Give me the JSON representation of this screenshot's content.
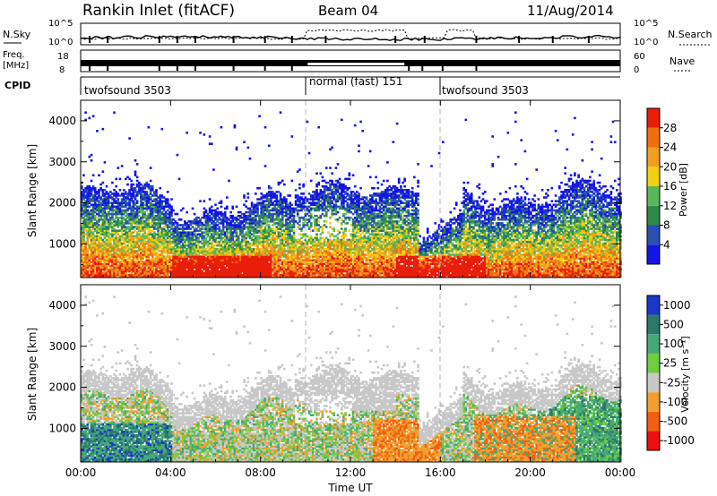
{
  "header": {
    "station": "Rankin Inlet (fitACF)",
    "beam": "Beam 04",
    "date": "11/Aug/2014"
  },
  "noise_panel": {
    "left_label": "N.Sky",
    "right_label": "N.Search",
    "left_ticks": [
      "10^5",
      "10^0"
    ],
    "right_ticks": [
      "10^5",
      "10^0"
    ]
  },
  "freq_panel": {
    "left_label_line1": "Freq.",
    "left_label_line2": "[MHz]",
    "right_label": "Nave",
    "left_ticks": [
      "18",
      "8"
    ],
    "right_ticks": [
      "60",
      "0"
    ]
  },
  "cpid_panel": {
    "label": "CPID",
    "segments": [
      {
        "start_hour": 0,
        "end_hour": 10,
        "text": "twofsound 3503"
      },
      {
        "start_hour": 10,
        "end_hour": 16,
        "text": "normal (fast) 151"
      },
      {
        "start_hour": 16,
        "end_hour": 24,
        "text": "twofsound 3503"
      }
    ]
  },
  "axes": {
    "x_label": "Time UT",
    "x_ticks": [
      "00:00",
      "04:00",
      "08:00",
      "12:00",
      "16:00",
      "20:00",
      "00:00"
    ],
    "y_label": "Slant Range [km]",
    "y_ticks": [
      "1000",
      "2000",
      "3000",
      "4000"
    ]
  },
  "colors": {
    "power": [
      "#1414e6",
      "#2a50b4",
      "#2e8a4a",
      "#58b858",
      "#f0d010",
      "#f0a020",
      "#f07010",
      "#e81e0a"
    ],
    "velocity": [
      "#ee1010",
      "#f06010",
      "#f0a030",
      "#c8c8c8",
      "#70cc40",
      "#46a878",
      "#2a7a6a",
      "#1838c8"
    ],
    "grid": "#b4b4b4"
  },
  "chart_data": [
    {
      "type": "heatmap",
      "title": "Power",
      "xlabel": "Time UT",
      "ylabel": "Slant Range [km]",
      "xlim": [
        0,
        24
      ],
      "ylim": [
        180,
        4500
      ],
      "colorbar_label": "Power [dB]",
      "colorbar_ticks": [
        "4",
        "8",
        "12",
        "16",
        "20",
        "24",
        "28"
      ],
      "colorbar_range": [
        0,
        32
      ]
    },
    {
      "type": "heatmap",
      "title": "Velocity",
      "xlabel": "Time UT",
      "ylabel": "Slant Range [km]",
      "xlim": [
        0,
        24
      ],
      "ylim": [
        180,
        4500
      ],
      "colorbar_label": "Velocity [m s⁻¹]",
      "colorbar_ticks": [
        "1000",
        "500",
        "100",
        "25",
        "-25",
        "-100",
        "-500",
        "-1000"
      ]
    }
  ]
}
